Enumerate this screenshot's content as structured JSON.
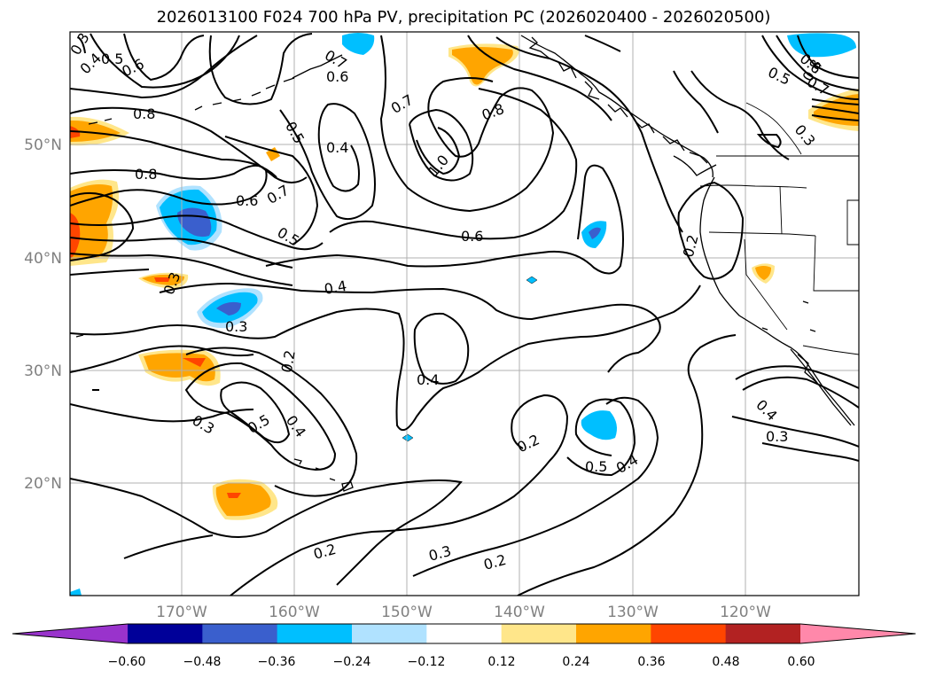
{
  "title": "2026013100 F024 700 hPa PV, precipitation PC (2026020400 - 2026020500)",
  "lat_labels": [
    "50°N",
    "40°N",
    "30°N",
    "20°N"
  ],
  "lon_labels": [
    "170°W",
    "160°W",
    "150°W",
    "140°W",
    "130°W",
    "120°W"
  ],
  "colorbar": {
    "ticks": [
      "−0.60",
      "−0.48",
      "−0.36",
      "−0.24",
      "−0.12",
      "0.12",
      "0.24",
      "0.36",
      "0.48",
      "0.60"
    ],
    "colors": [
      "#9933cc",
      "#000099",
      "#3a5fcd",
      "#00bfff",
      "#b0e2ff",
      "#ffffff",
      "#ffe68a",
      "#ffa500",
      "#ff4500",
      "#b22222",
      "#ff88aa"
    ]
  },
  "contour_labels": [
    {
      "text": "0.3"
    },
    {
      "text": "0.4"
    },
    {
      "text": "0.5"
    },
    {
      "text": "0.6"
    },
    {
      "text": "0.8"
    },
    {
      "text": "0.8"
    },
    {
      "text": "0.6"
    },
    {
      "text": "0.7"
    },
    {
      "text": "0.5"
    },
    {
      "text": "0.5"
    },
    {
      "text": "0.4"
    },
    {
      "text": "0.6"
    },
    {
      "text": "0.7"
    },
    {
      "text": "1.0"
    },
    {
      "text": "0.8"
    },
    {
      "text": "0.7"
    },
    {
      "text": "0.6"
    },
    {
      "text": "0.4"
    },
    {
      "text": "0.3"
    },
    {
      "text": "0.3"
    },
    {
      "text": "0.2"
    },
    {
      "text": "0.4"
    },
    {
      "text": "0.3"
    },
    {
      "text": "0.5"
    },
    {
      "text": "0.4"
    },
    {
      "text": "0.2"
    },
    {
      "text": "0.5"
    },
    {
      "text": "0.4"
    },
    {
      "text": "0.2"
    },
    {
      "text": "0.3"
    },
    {
      "text": "0.2"
    },
    {
      "text": "0.2"
    },
    {
      "text": "0.4"
    },
    {
      "text": "0.3"
    },
    {
      "text": "0.6"
    },
    {
      "text": "0.7"
    },
    {
      "text": "0.3"
    },
    {
      "text": "0.5"
    },
    {
      "text": "0.8"
    }
  ]
}
